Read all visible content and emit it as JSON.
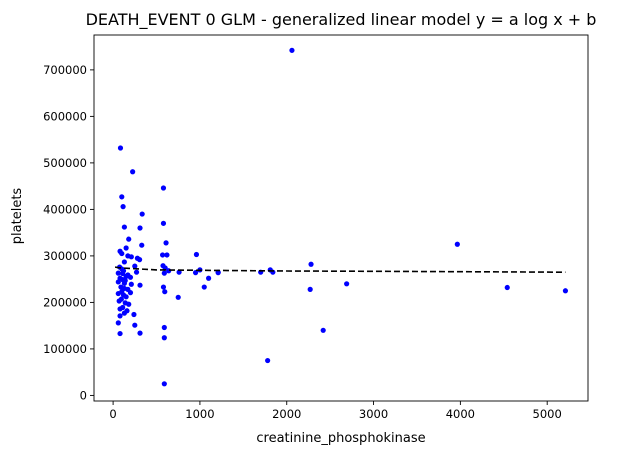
{
  "chart_data": {
    "type": "scatter",
    "title": "DEATH_EVENT 0 GLM - generalized linear model  y = a log x + b",
    "xlabel": "creatinine_phosphokinase",
    "ylabel": "platelets",
    "xlim": [
      -220,
      5470
    ],
    "ylim": [
      -12000,
      775000
    ],
    "xticks": [
      0,
      1000,
      2000,
      3000,
      4000,
      5000
    ],
    "yticks": [
      0,
      100000,
      200000,
      300000,
      400000,
      500000,
      600000,
      700000
    ],
    "grid": false,
    "colors": {
      "points": "#0000ff",
      "fit_line": "#000000"
    },
    "series": [
      {
        "kind": "points",
        "points": [
          [
            85,
            532000
          ],
          [
            100,
            427000
          ],
          [
            115,
            406000
          ],
          [
            225,
            481000
          ],
          [
            580,
            446000
          ],
          [
            335,
            390000
          ],
          [
            580,
            370000
          ],
          [
            310,
            360000
          ],
          [
            130,
            362000
          ],
          [
            610,
            328000
          ],
          [
            330,
            323000
          ],
          [
            180,
            336000
          ],
          [
            150,
            317000
          ],
          [
            80,
            310000
          ],
          [
            100,
            305000
          ],
          [
            170,
            300000
          ],
          [
            210,
            298000
          ],
          [
            280,
            295000
          ],
          [
            305,
            292000
          ],
          [
            570,
            302000
          ],
          [
            620,
            302000
          ],
          [
            960,
            303000
          ],
          [
            130,
            287000
          ],
          [
            250,
            278000
          ],
          [
            75,
            276000
          ],
          [
            100,
            272000
          ],
          [
            120,
            268000
          ],
          [
            270,
            265000
          ],
          [
            60,
            263000
          ],
          [
            110,
            262000
          ],
          [
            170,
            259000
          ],
          [
            150,
            256000
          ],
          [
            200,
            254000
          ],
          [
            80,
            252000
          ],
          [
            110,
            249000
          ],
          [
            140,
            247000
          ],
          [
            60,
            244000
          ],
          [
            130,
            241000
          ],
          [
            210,
            239000
          ],
          [
            310,
            237000
          ],
          [
            90,
            233000
          ],
          [
            130,
            230000
          ],
          [
            170,
            228000
          ],
          [
            100,
            223000
          ],
          [
            200,
            221000
          ],
          [
            60,
            219000
          ],
          [
            120,
            216000
          ],
          [
            150,
            212000
          ],
          [
            95,
            207000
          ],
          [
            70,
            203000
          ],
          [
            140,
            199000
          ],
          [
            180,
            196000
          ],
          [
            110,
            189000
          ],
          [
            80,
            186000
          ],
          [
            160,
            182000
          ],
          [
            130,
            177000
          ],
          [
            240,
            174000
          ],
          [
            80,
            171000
          ],
          [
            60,
            156000
          ],
          [
            250,
            151000
          ],
          [
            80,
            133000
          ],
          [
            310,
            134000
          ],
          [
            575,
            279000
          ],
          [
            600,
            274000
          ],
          [
            590,
            263000
          ],
          [
            640,
            268000
          ],
          [
            760,
            265000
          ],
          [
            1000,
            270000
          ],
          [
            950,
            264000
          ],
          [
            1100,
            252000
          ],
          [
            1050,
            233000
          ],
          [
            750,
            211000
          ],
          [
            580,
            233000
          ],
          [
            595,
            223000
          ],
          [
            590,
            146000
          ],
          [
            590,
            124000
          ],
          [
            590,
            25000
          ],
          [
            1210,
            264000
          ],
          [
            1210,
            265000
          ],
          [
            1700,
            265000
          ],
          [
            1810,
            270000
          ],
          [
            1840,
            265000
          ],
          [
            1780,
            75000
          ],
          [
            2060,
            742000
          ],
          [
            2280,
            282000
          ],
          [
            2270,
            228000
          ],
          [
            2420,
            140000
          ],
          [
            2690,
            240000
          ],
          [
            3965,
            325000
          ],
          [
            4540,
            232000
          ],
          [
            5210,
            225000
          ]
        ]
      },
      {
        "kind": "fit_line",
        "equation": "y = a log x + b",
        "points": [
          [
            23,
            276000
          ],
          [
            50,
            275000
          ],
          [
            100,
            274000
          ],
          [
            200,
            273000
          ],
          [
            500,
            270000
          ],
          [
            1000,
            269000
          ],
          [
            2000,
            267500
          ],
          [
            3000,
            266800
          ],
          [
            4000,
            266000
          ],
          [
            5210,
            265000
          ]
        ]
      }
    ]
  }
}
